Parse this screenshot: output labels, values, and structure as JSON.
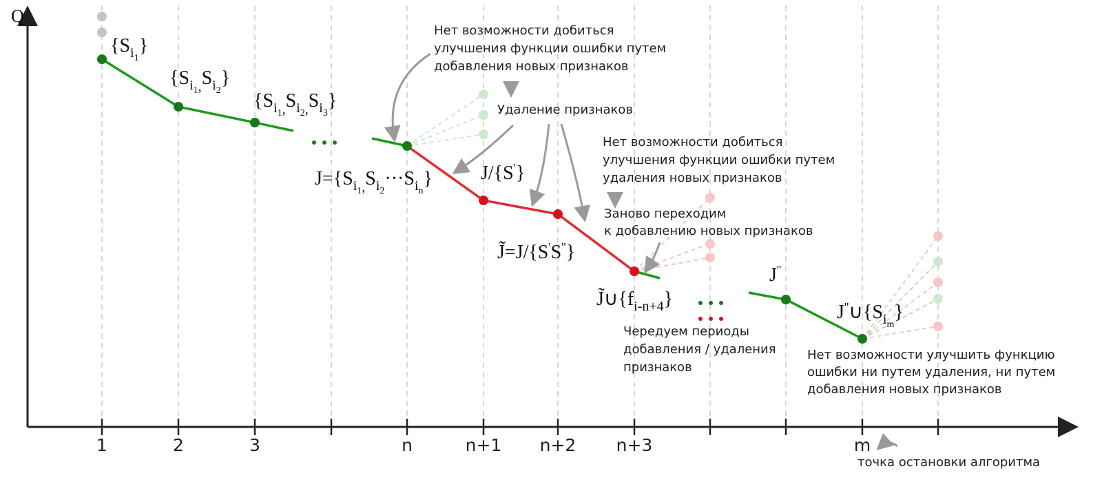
{
  "axis": {
    "y_label": "Q",
    "ticks": [
      "1",
      "2",
      "3",
      null,
      "n",
      "n+1",
      "n+2",
      "n+3",
      null,
      null,
      "m",
      null
    ]
  },
  "set_labels": [
    [
      "{S",
      "i",
      "1",
      "}"
    ],
    [
      "{S",
      "i",
      "1",
      ",",
      "S",
      "i",
      "2",
      "}"
    ],
    [
      "{S",
      "i",
      "1",
      ",",
      "S",
      "i",
      "2",
      ",",
      "S",
      "i",
      "3",
      "}"
    ],
    [
      "J={S",
      "i",
      "1",
      ",",
      "S",
      "i",
      "2",
      "···S",
      "i",
      "n",
      "}"
    ],
    [
      "J/{S",
      "'",
      "}"
    ],
    [
      "J̃=J/{S",
      "'",
      "S",
      "''",
      "}"
    ],
    [
      "J̃∪{f",
      "i-n+4",
      "}"
    ],
    [
      "J",
      "''"
    ],
    [
      "J",
      "''",
      "∪{S",
      "i",
      "m",
      "}"
    ]
  ],
  "annotations": {
    "no_add": [
      "Нет возможности добиться",
      "улучшения функции ошибки путем",
      "добавления новых признаков"
    ],
    "removal": "Удаление признаков",
    "no_remove": [
      "Нет возможности добиться",
      "улучшения функции ошибки путем",
      "удаления новых признаков"
    ],
    "back_to_add": [
      "Заново переходим",
      "к добавлению новых признаков"
    ],
    "alternate": [
      "Чередуем периоды",
      "добавления / удаления",
      "признаков"
    ],
    "stop_condition": [
      "Нет возможности улучшить функцию",
      "ошибки ни путем удаления, ни путем",
      "добавления новых признаков"
    ],
    "stop_point": "точка остановки алгоритма"
  }
}
